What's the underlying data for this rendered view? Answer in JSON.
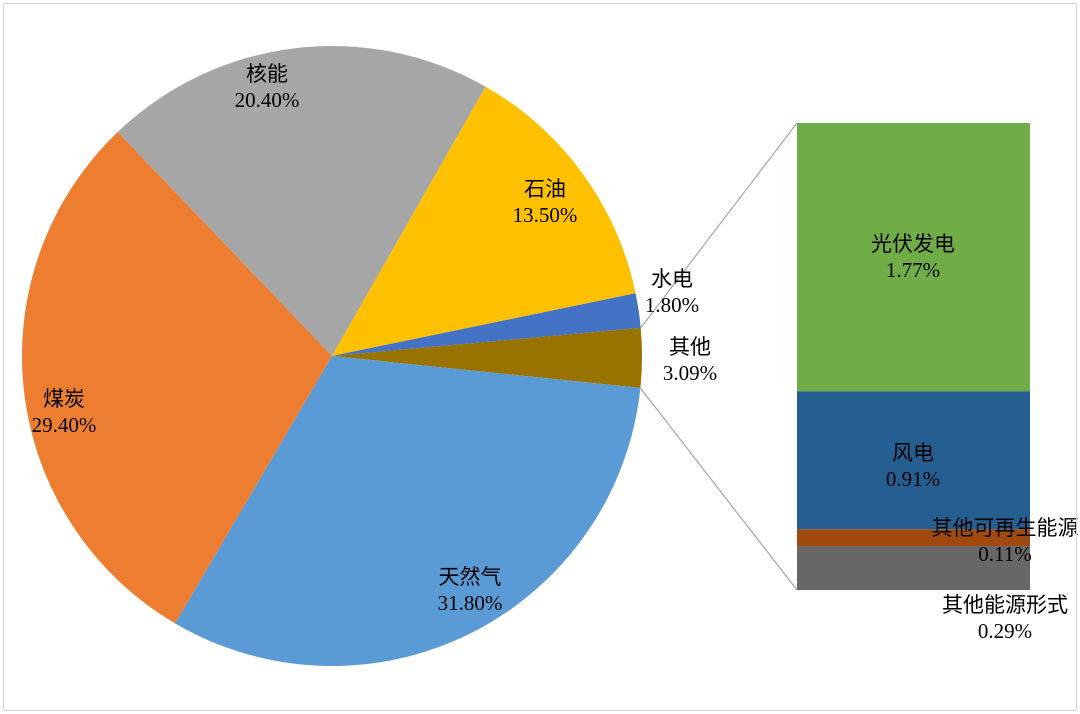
{
  "chart_data": {
    "type": "pie",
    "variant": "pie-of-pie",
    "title": "",
    "legend": "none",
    "pie": {
      "slices": [
        {
          "name": "nuclear",
          "label": "核能",
          "value": 20.4,
          "display": "20.40%",
          "color": "#A6A6A6",
          "breakout": false
        },
        {
          "name": "oil",
          "label": "石油",
          "value": 13.5,
          "display": "13.50%",
          "color": "#FFC000",
          "breakout": false
        },
        {
          "name": "hydro",
          "label": "水电",
          "value": 1.8,
          "display": "1.80%",
          "color": "#4472C4",
          "breakout": false
        },
        {
          "name": "other",
          "label": "其他",
          "value": 3.09,
          "display": "3.09%",
          "color": "#997300",
          "breakout": true
        },
        {
          "name": "natural-gas",
          "label": "天然气",
          "value": 31.8,
          "display": "31.80%",
          "color": "#5B9BD5",
          "breakout": false
        },
        {
          "name": "coal",
          "label": "煤炭",
          "value": 29.4,
          "display": "29.40%",
          "color": "#ED7D31",
          "breakout": false
        }
      ]
    },
    "breakout_bar": {
      "segments": [
        {
          "name": "solar-pv",
          "label": "光伏发电",
          "value": 1.77,
          "display": "1.77%",
          "color": "#70AD47"
        },
        {
          "name": "wind",
          "label": "风电",
          "value": 0.91,
          "display": "0.91%",
          "color": "#255E91"
        },
        {
          "name": "other-renewables",
          "label": "其他可再生能源",
          "value": 0.11,
          "display": "0.11%",
          "color": "#A04A10"
        },
        {
          "name": "other-energy-forms",
          "label": "其他能源形式",
          "value": 0.29,
          "display": "0.29%",
          "color": "#696666"
        }
      ]
    },
    "colors": {
      "background": "#FFFFFF",
      "frame_border": "#D6D6D6",
      "connector_line": "#A6A6A6",
      "label_text": "#000000"
    }
  }
}
